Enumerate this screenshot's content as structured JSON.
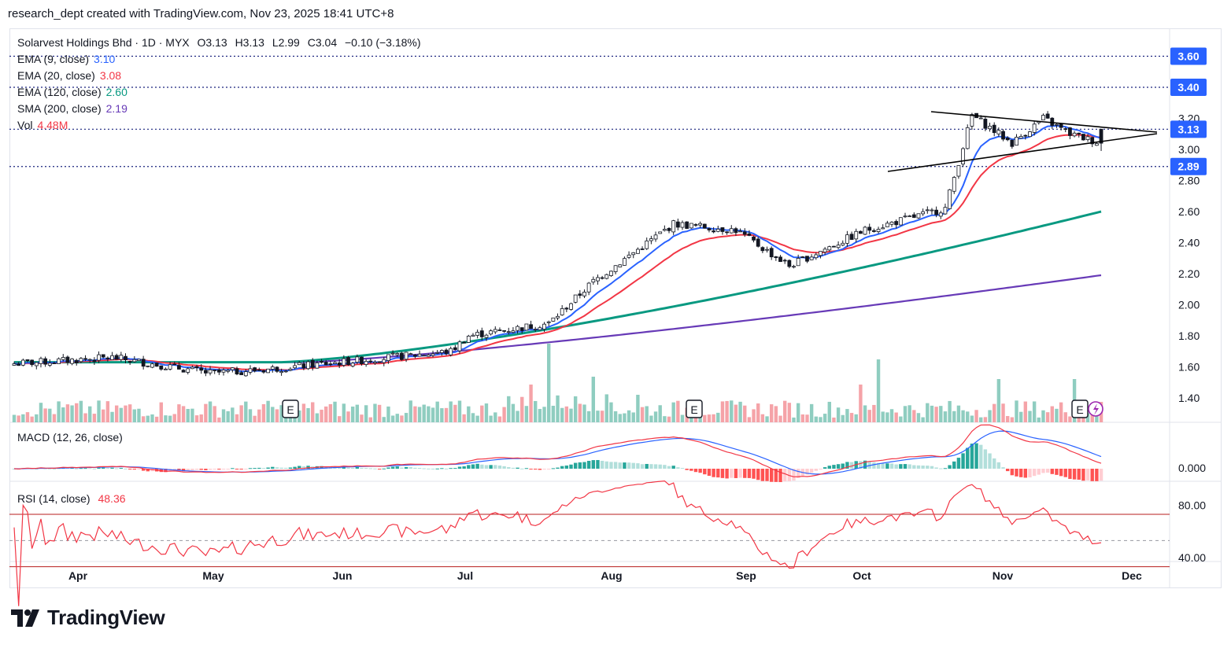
{
  "header": {
    "attribution": "research_dept created with TradingView.com, Nov 23, 2025 18:41 UTC+8"
  },
  "legend": {
    "symbol_line": "Solarvest Holdings Bhd · 1D · MYX",
    "open": "O3.13",
    "high": "H3.13",
    "low": "L2.99",
    "close": "C3.04",
    "change": "−0.10 (−3.18%)",
    "ema9": {
      "label": "EMA (9, close)",
      "value": "3.10",
      "color": "#2962ff"
    },
    "ema20": {
      "label": "EMA (20, close)",
      "value": "3.08",
      "color": "#f23645"
    },
    "ema120": {
      "label": "EMA (120, close)",
      "value": "2.60",
      "color": "#089981"
    },
    "sma200": {
      "label": "SMA (200, close)",
      "value": "2.19",
      "color": "#673ab7"
    },
    "vol": {
      "label": "Vol",
      "value": "4.48M",
      "color": "#f23645"
    }
  },
  "price_badges": [
    {
      "value": "3.60",
      "color": "#2962ff"
    },
    {
      "value": "3.40",
      "color": "#2962ff"
    },
    {
      "value": "3.13",
      "color": "#2962ff"
    },
    {
      "value": "2.89",
      "color": "#2962ff"
    }
  ],
  "macd": {
    "label": "MACD (12, 26, close)",
    "tick": "0.000"
  },
  "rsi": {
    "label": "RSI (14, close)",
    "value": "48.36",
    "ticks": [
      "80.00",
      "40.00"
    ]
  },
  "earnings_markers": [
    "E",
    "E",
    "E"
  ],
  "footer": {
    "brand": "TradingView"
  },
  "chart_data": {
    "type": "candlestick",
    "title": "Solarvest Holdings Bhd · 1D · MYX",
    "price_axis_ticks": [
      "3.20",
      "3.00",
      "2.80",
      "2.60",
      "2.40",
      "2.20",
      "2.00",
      "1.80",
      "1.60",
      "1.40"
    ],
    "time_axis_labels": [
      "Apr",
      "May",
      "Jun",
      "Jul",
      "Aug",
      "Sep",
      "Oct",
      "Nov",
      "Dec"
    ],
    "ylim": [
      1.3,
      3.7
    ],
    "key_points": [
      {
        "date": "Mar 15",
        "close": 1.62
      },
      {
        "date": "Apr 07",
        "close": 1.56
      },
      {
        "date": "May 01",
        "close": 1.64
      },
      {
        "date": "Jun 02",
        "close": 1.7
      },
      {
        "date": "Jun 27",
        "close": 1.88
      },
      {
        "date": "Jul 02",
        "close": 2.15
      },
      {
        "date": "Jul 21",
        "close": 2.52
      },
      {
        "date": "Aug 08",
        "close": 2.48
      },
      {
        "date": "Aug 27",
        "close": 2.25
      },
      {
        "date": "Sep 08",
        "close": 2.48
      },
      {
        "date": "Sep 23",
        "close": 2.62
      },
      {
        "date": "Oct 15",
        "close": 3.22
      },
      {
        "date": "Oct 29",
        "close": 3.02
      },
      {
        "date": "Nov 07",
        "close": 3.2
      },
      {
        "date": "Nov 21",
        "close": 3.04
      }
    ],
    "horizontal_levels": [
      3.6,
      3.4,
      3.13,
      2.89
    ],
    "series": [
      {
        "name": "EMA (9, close)",
        "last": 3.1
      },
      {
        "name": "EMA (20, close)",
        "last": 3.08
      },
      {
        "name": "EMA (120, close)",
        "last": 2.6
      },
      {
        "name": "SMA (200, close)",
        "last": 2.19
      }
    ],
    "last_volume": "4.48M",
    "rsi_last": 48.36,
    "rsi_levels": [
      80,
      40
    ]
  },
  "colors": {
    "up": "#089981",
    "down": "#f23645",
    "candle_up_fill": "#ffffff",
    "candle_down_fill": "#131722",
    "vol_up": "#8fcdc0",
    "vol_down": "#f5a3a8",
    "macd_line": "#2962ff",
    "signal_line": "#f23645",
    "rsi_line": "#f23645",
    "rsi_band": "#b71c1c"
  }
}
